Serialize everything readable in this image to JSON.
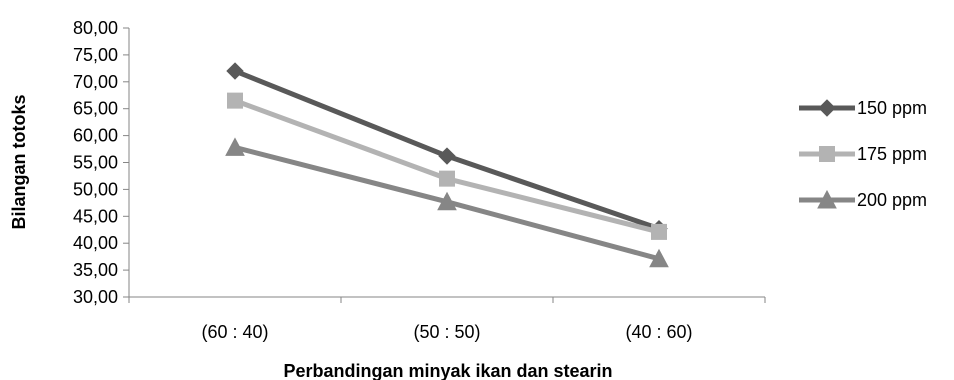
{
  "chart_data": {
    "type": "line",
    "title": "",
    "xlabel": "Perbandingan minyak ikan dan stearin",
    "ylabel": "Bilangan totoks",
    "categories": [
      "(60 : 40)",
      "(50 : 50)",
      "(40 : 60)"
    ],
    "ylim": [
      30,
      80
    ],
    "yticks": [
      30,
      35,
      40,
      45,
      50,
      55,
      60,
      65,
      70,
      75,
      80
    ],
    "ytick_labels": [
      "30,00",
      "35,00",
      "40,00",
      "45,00",
      "50,00",
      "55,00",
      "60,00",
      "65,00",
      "70,00",
      "75,00",
      "80,00"
    ],
    "grid": false,
    "legend_position": "right",
    "series": [
      {
        "name": "150 ppm",
        "values": [
          72.0,
          56.2,
          42.7
        ],
        "color": "#595959",
        "marker": "diamond"
      },
      {
        "name": "175 ppm",
        "values": [
          66.5,
          52.0,
          42.1
        ],
        "color": "#b3b3b3",
        "marker": "square"
      },
      {
        "name": "200 ppm",
        "values": [
          57.8,
          47.7,
          37.1
        ],
        "color": "#868686",
        "marker": "triangle"
      }
    ]
  }
}
